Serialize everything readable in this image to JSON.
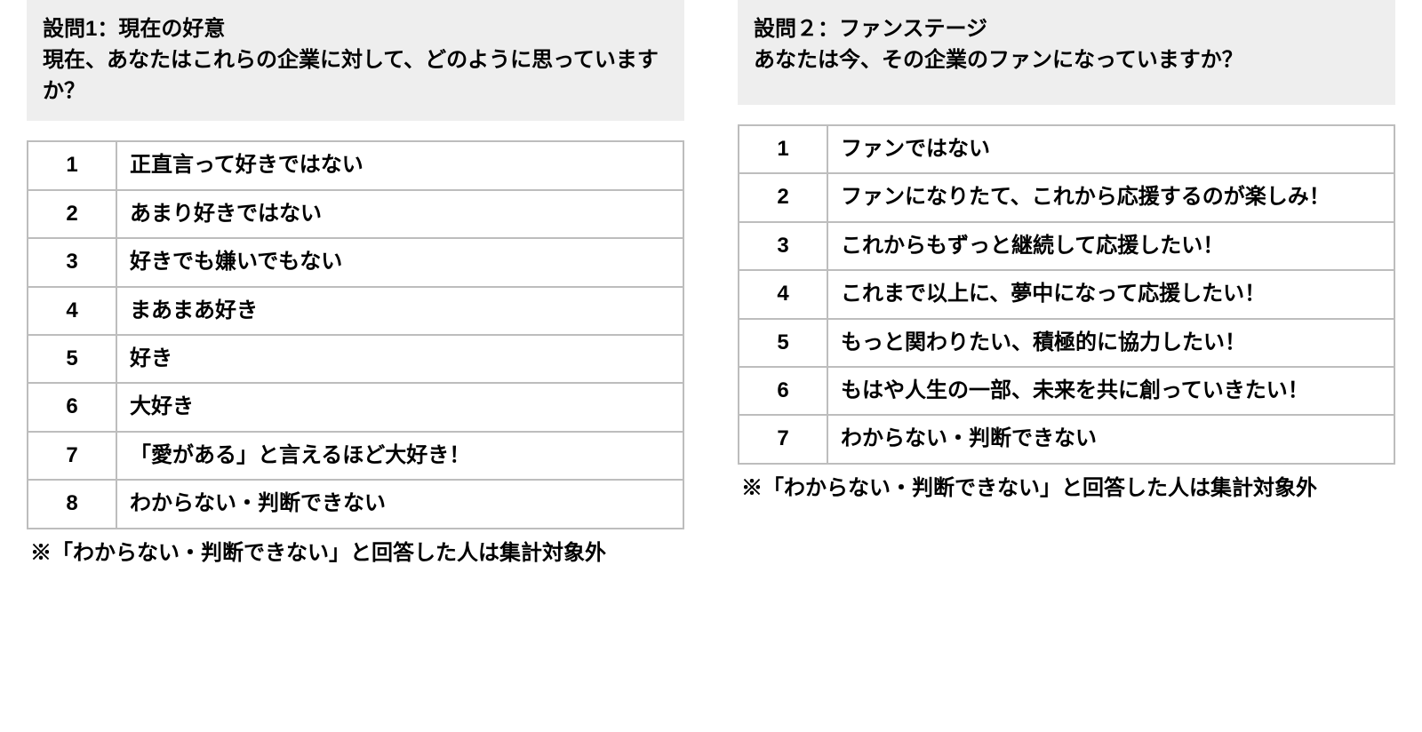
{
  "colors": {
    "header_bg": "#eeeeee",
    "border": "#bdbdbd",
    "text": "#000000",
    "page_bg": "#ffffff"
  },
  "typography": {
    "base_fontsize_pt": 18,
    "weight": 700
  },
  "left": {
    "title": "設問1：現在の好意",
    "prompt": "現在、あなたはこれらの企業に対して、どのように思っていますか？",
    "options": [
      {
        "num": "1",
        "label": "正直言って好きではない"
      },
      {
        "num": "2",
        "label": "あまり好きではない"
      },
      {
        "num": "3",
        "label": "好きでも嫌いでもない"
      },
      {
        "num": "4",
        "label": "まあまあ好き"
      },
      {
        "num": "5",
        "label": "好き"
      },
      {
        "num": "6",
        "label": "大好き"
      },
      {
        "num": "7",
        "label": "「愛がある」と言えるほど大好き！"
      },
      {
        "num": "8",
        "label": "わからない・判断できない"
      }
    ],
    "footnote": "※「わからない・判断できない」と回答した人は集計対象外"
  },
  "right": {
    "title": "設問２：ファンステージ",
    "prompt": "あなたは今、その企業のファンになっていますか？",
    "options": [
      {
        "num": "1",
        "label": "ファンではない"
      },
      {
        "num": "2",
        "label": "ファンになりたて、これから応援するのが楽しみ！"
      },
      {
        "num": "3",
        "label": "これからもずっと継続して応援したい！"
      },
      {
        "num": "4",
        "label": "これまで以上に、夢中になって応援したい！"
      },
      {
        "num": "5",
        "label": "もっと関わりたい、積極的に協力したい！"
      },
      {
        "num": "6",
        "label": "もはや人生の一部、未来を共に創っていきたい！"
      },
      {
        "num": "7",
        "label": "わからない・判断できない"
      }
    ],
    "footnote": "※「わからない・判断できない」と回答した人は集計対象外"
  }
}
